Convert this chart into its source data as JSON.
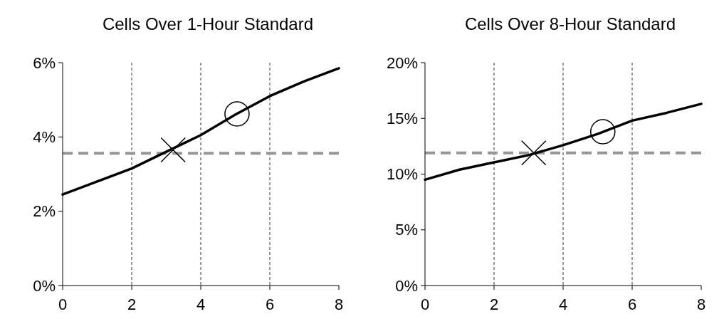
{
  "chart_data": [
    {
      "type": "line",
      "title": "Cells Over 1-Hour Standard",
      "xlim": [
        0,
        8
      ],
      "xticks": [
        0,
        2,
        4,
        6,
        8
      ],
      "ylim": [
        0,
        6
      ],
      "yticks": [
        {
          "value": 0,
          "label": "0%"
        },
        {
          "value": 2,
          "label": "2%"
        },
        {
          "value": 4,
          "label": "4%"
        },
        {
          "value": 6,
          "label": "6%"
        }
      ],
      "grid": "x",
      "series": [
        {
          "color": "#000000",
          "marker": "none",
          "x": [
            0,
            1,
            2,
            3,
            4,
            5,
            6,
            7,
            8
          ],
          "values": [
            2.45,
            2.8,
            3.15,
            3.6,
            4.05,
            4.6,
            5.1,
            5.5,
            5.85
          ]
        },
        {
          "type": "scatter",
          "color": "#000000",
          "marker": "cross",
          "x": [
            3.2
          ],
          "values": [
            3.65
          ]
        },
        {
          "type": "scatter",
          "color": "#000000",
          "marker": "circle",
          "x": [
            5.05
          ],
          "values": [
            4.62
          ]
        }
      ],
      "ref_lines": [
        {
          "axis": "y",
          "value": 3.56,
          "color": "#969696",
          "line_style": "dashed"
        }
      ]
    },
    {
      "type": "line",
      "title": "Cells Over 8-Hour Standard",
      "xlim": [
        0,
        8
      ],
      "xticks": [
        0,
        2,
        4,
        6,
        8
      ],
      "ylim": [
        0,
        20
      ],
      "yticks": [
        {
          "value": 0,
          "label": "0%"
        },
        {
          "value": 5,
          "label": "5%"
        },
        {
          "value": 10,
          "label": "10%"
        },
        {
          "value": 15,
          "label": "15%"
        },
        {
          "value": 20,
          "label": "20%"
        }
      ],
      "grid": "x",
      "series": [
        {
          "color": "#000000",
          "marker": "none",
          "x": [
            0,
            1,
            2,
            3,
            4,
            5,
            6,
            7,
            8
          ],
          "values": [
            9.5,
            10.4,
            11.05,
            11.7,
            12.6,
            13.6,
            14.8,
            15.5,
            16.3
          ]
        },
        {
          "type": "scatter",
          "color": "#000000",
          "marker": "cross",
          "x": [
            3.15
          ],
          "values": [
            11.9
          ]
        },
        {
          "type": "scatter",
          "color": "#000000",
          "marker": "circle",
          "x": [
            5.15
          ],
          "values": [
            13.8
          ]
        }
      ],
      "ref_lines": [
        {
          "axis": "y",
          "value": 11.9,
          "color": "#969696",
          "line_style": "dashed"
        }
      ]
    }
  ]
}
